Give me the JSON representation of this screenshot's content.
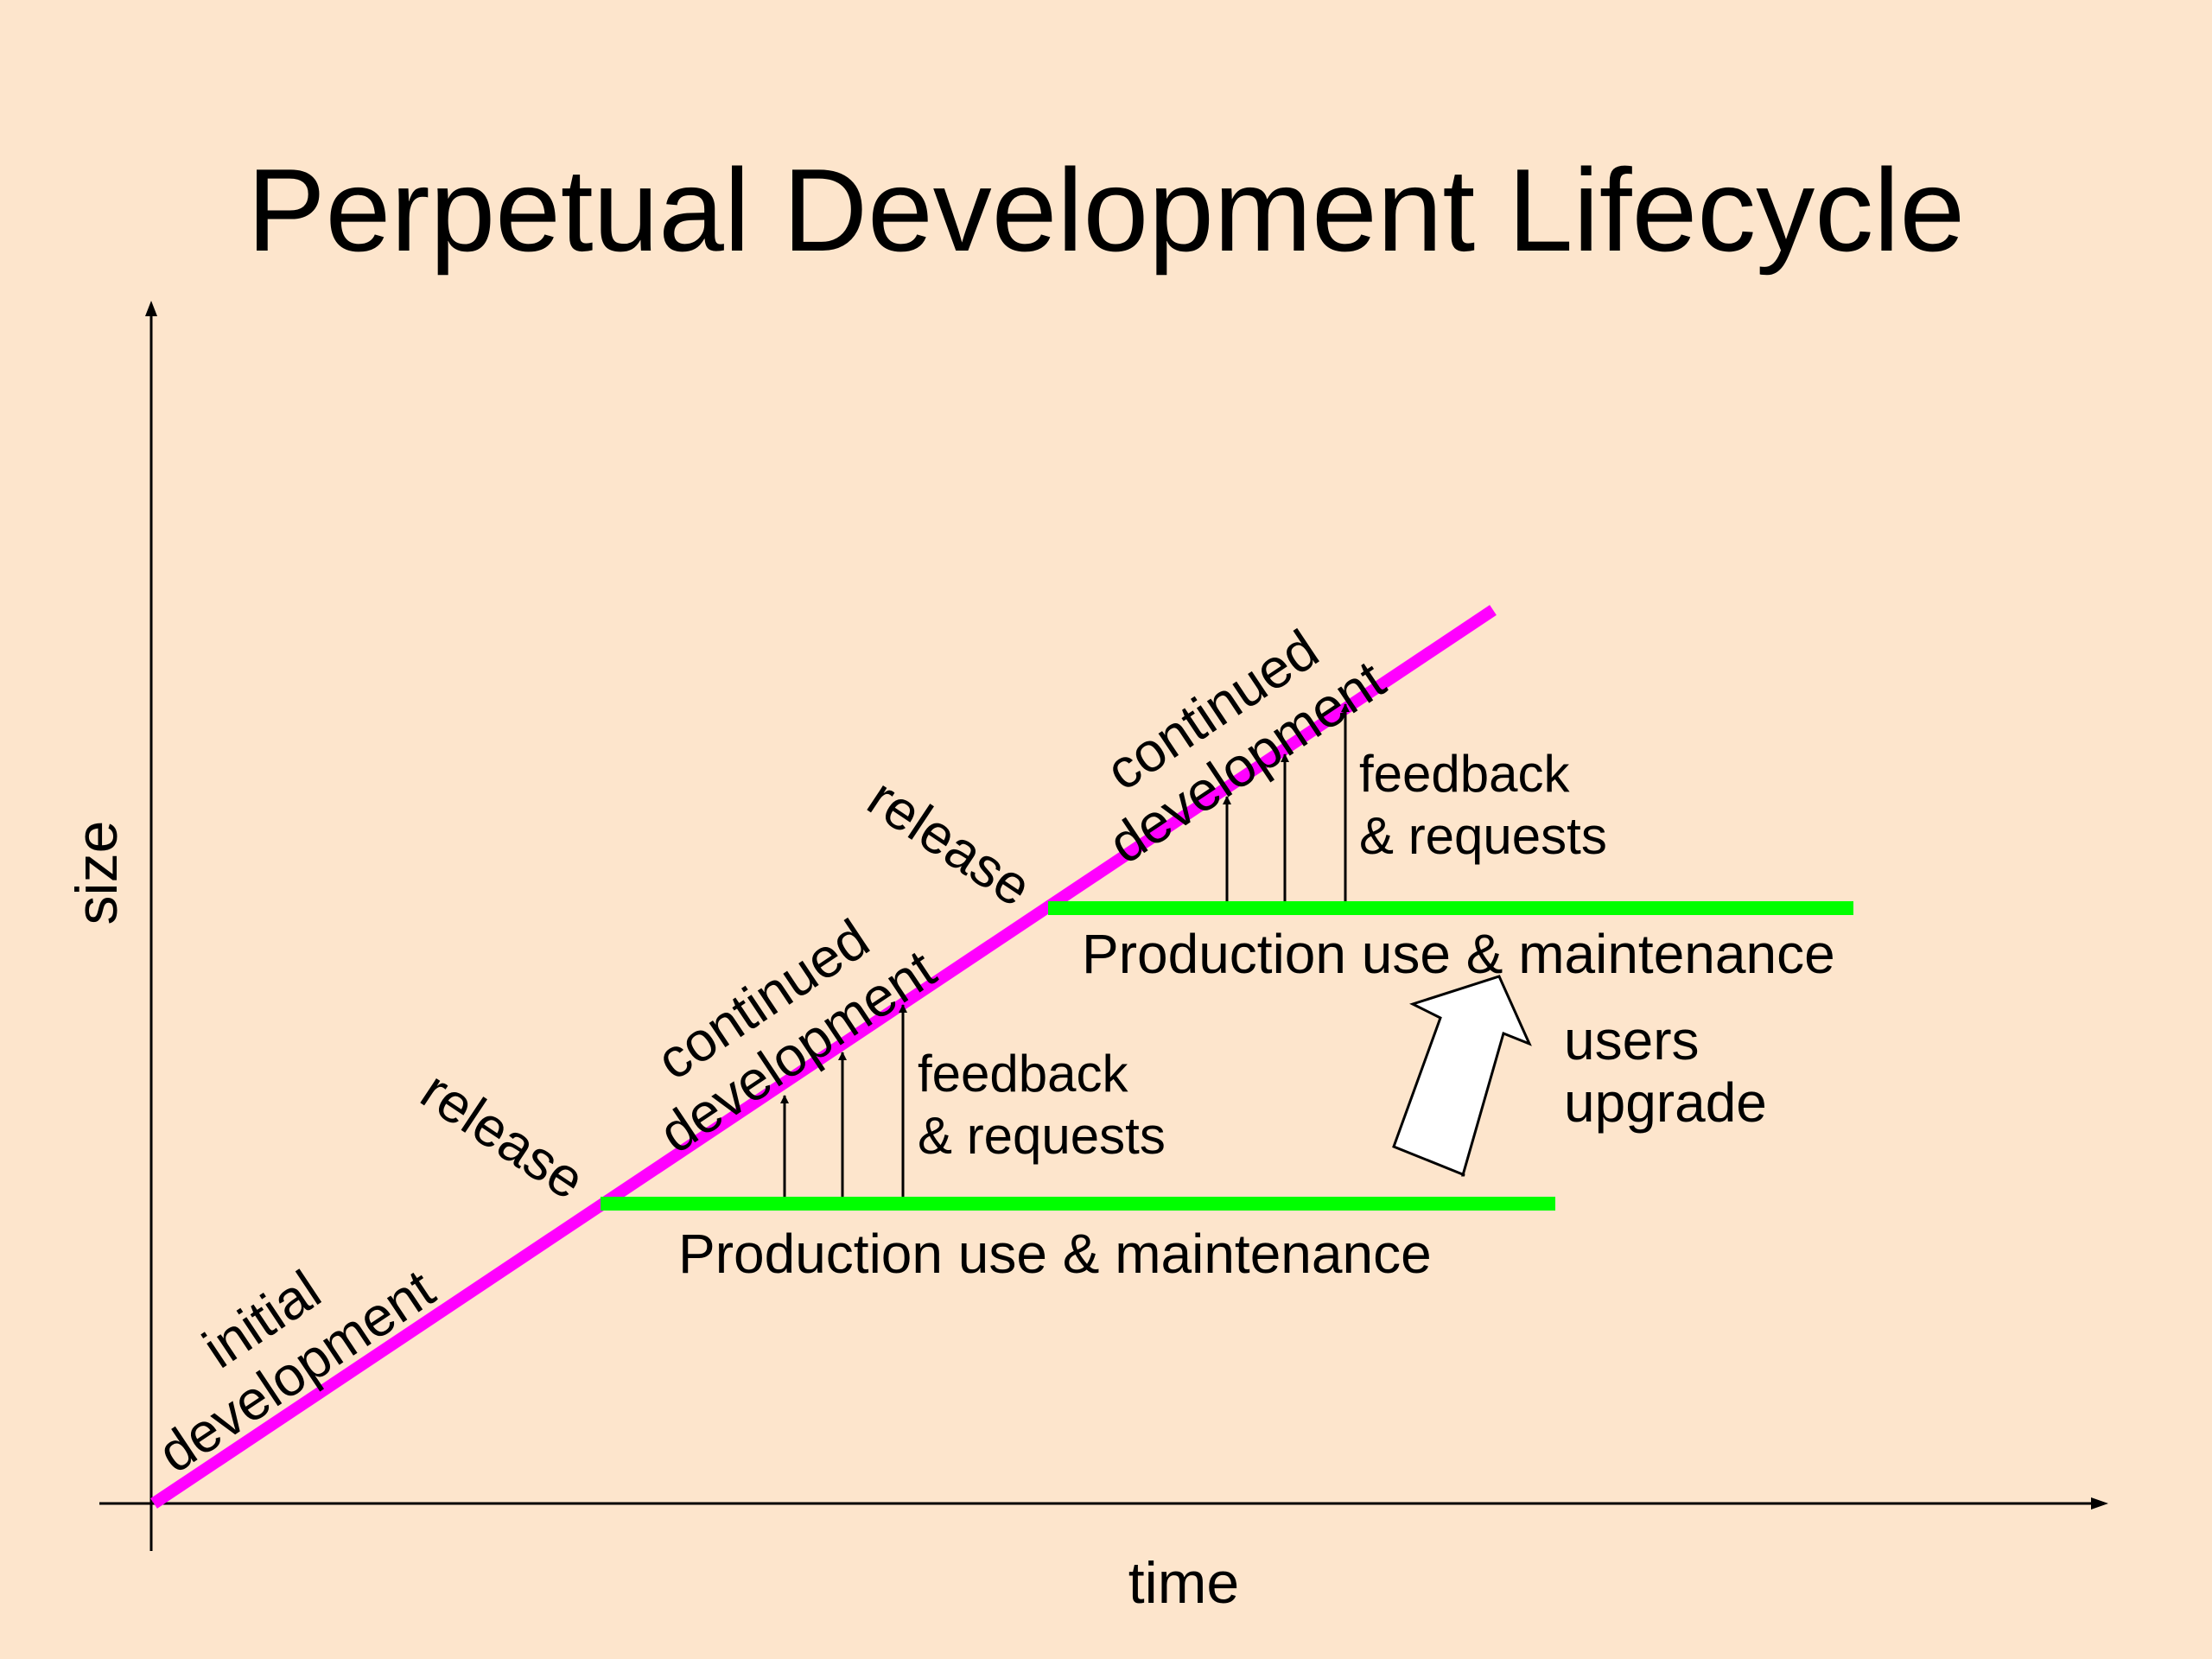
{
  "title": "Perpetual Development Lifecycle",
  "axes": {
    "x_label": "time",
    "y_label": "size"
  },
  "labels": {
    "initial_1": "initial",
    "initial_2": "development",
    "release_1": "release",
    "release_2": "release",
    "continued_1a": "continued",
    "continued_1b": "development",
    "continued_2a": "continued",
    "continued_2b": "development",
    "feedback_1a": "feedback",
    "feedback_1b": "& requests",
    "feedback_2a": "feedback",
    "feedback_2b": "& requests",
    "production_1": "Production use & maintenance",
    "production_2": "Production use & maintenance",
    "upgrade_1": "users",
    "upgrade_2": "upgrade"
  },
  "colors": {
    "background": "#fde5cc",
    "development_line": "#ff00ff",
    "production_line": "#00ff00",
    "axis": "#000000"
  }
}
